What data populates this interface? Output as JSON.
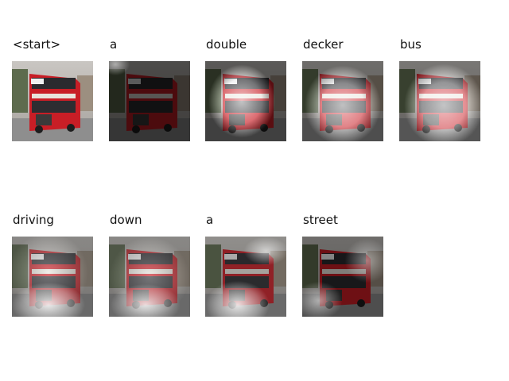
{
  "panels": [
    {
      "word": "<start>"
    },
    {
      "word": "a"
    },
    {
      "word": "double"
    },
    {
      "word": "decker"
    },
    {
      "word": "bus"
    },
    {
      "word": "driving"
    },
    {
      "word": "down"
    },
    {
      "word": "a"
    },
    {
      "word": "street"
    }
  ]
}
